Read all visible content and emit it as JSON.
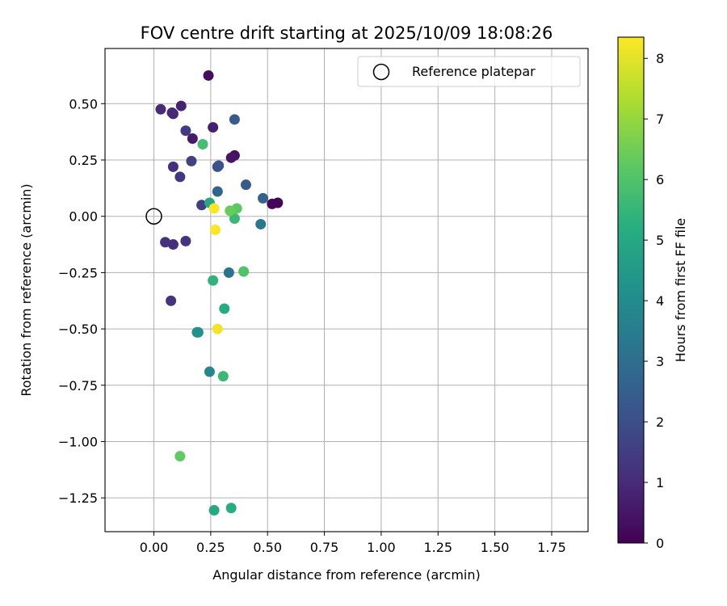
{
  "chart_data": {
    "type": "scatter",
    "title": "FOV centre drift starting at 2025/10/09 18:08:26",
    "xlabel": "Angular distance from reference (arcmin)",
    "ylabel": "Rotation from reference (arcmin)",
    "xlim": [
      -0.215,
      1.91
    ],
    "ylim": [
      -1.4,
      0.745
    ],
    "xticks": [
      0.0,
      0.25,
      0.5,
      0.75,
      1.0,
      1.25,
      1.5,
      1.75
    ],
    "xtick_labels": [
      "0.00",
      "0.25",
      "0.50",
      "0.75",
      "1.00",
      "1.25",
      "1.50",
      "1.75"
    ],
    "yticks": [
      0.5,
      0.25,
      0.0,
      -0.25,
      -0.5,
      -0.75,
      -1.0,
      -1.25
    ],
    "ytick_labels": [
      "0.50",
      "0.25",
      "0.00",
      "−0.25",
      "−0.50",
      "−0.75",
      "−1.00",
      "−1.25"
    ],
    "grid": true,
    "legend": {
      "placement": "top-right",
      "entries": [
        "Reference platepar"
      ]
    },
    "reference_point": {
      "label": "Reference platepar",
      "x": 0.0,
      "y": 0.0
    },
    "colorbar": {
      "label": "Hours from first FF file",
      "min": 0,
      "max": 8.35,
      "ticks": [
        0,
        1,
        2,
        3,
        4,
        5,
        6,
        7,
        8
      ],
      "tick_labels": [
        "0",
        "1",
        "2",
        "3",
        "4",
        "5",
        "6",
        "7",
        "8"
      ],
      "colormap": "viridis"
    },
    "points": [
      {
        "x": 0.545,
        "y": 0.06,
        "h": 0.05
      },
      {
        "x": 0.52,
        "y": 0.055,
        "h": 0.15
      },
      {
        "x": 0.24,
        "y": 0.625,
        "h": 0.3
      },
      {
        "x": 0.355,
        "y": 0.27,
        "h": 0.4
      },
      {
        "x": 0.34,
        "y": 0.26,
        "h": 0.5
      },
      {
        "x": 0.17,
        "y": 0.345,
        "h": 0.6
      },
      {
        "x": 0.26,
        "y": 0.395,
        "h": 0.7
      },
      {
        "x": 0.12,
        "y": 0.49,
        "h": 0.8
      },
      {
        "x": 0.085,
        "y": 0.455,
        "h": 0.9
      },
      {
        "x": 0.08,
        "y": 0.46,
        "h": 0.95
      },
      {
        "x": 0.03,
        "y": 0.475,
        "h": 1.0
      },
      {
        "x": 0.085,
        "y": 0.22,
        "h": 1.1
      },
      {
        "x": 0.085,
        "y": -0.125,
        "h": 1.05
      },
      {
        "x": 0.05,
        "y": -0.115,
        "h": 1.15
      },
      {
        "x": 0.075,
        "y": -0.375,
        "h": 1.2
      },
      {
        "x": 0.14,
        "y": -0.11,
        "h": 1.25
      },
      {
        "x": 0.115,
        "y": 0.175,
        "h": 1.35
      },
      {
        "x": 0.14,
        "y": 0.38,
        "h": 1.45
      },
      {
        "x": 0.21,
        "y": 0.05,
        "h": 1.55
      },
      {
        "x": 0.165,
        "y": 0.245,
        "h": 1.6
      },
      {
        "x": 0.28,
        "y": 0.22,
        "h": 2.05
      },
      {
        "x": 0.285,
        "y": 0.225,
        "h": 2.1
      },
      {
        "x": 0.355,
        "y": 0.43,
        "h": 2.3
      },
      {
        "x": 0.405,
        "y": 0.14,
        "h": 2.4
      },
      {
        "x": 0.48,
        "y": 0.08,
        "h": 2.6
      },
      {
        "x": 0.28,
        "y": 0.11,
        "h": 2.7
      },
      {
        "x": 0.47,
        "y": -0.035,
        "h": 3.3
      },
      {
        "x": 0.33,
        "y": -0.25,
        "h": 3.2
      },
      {
        "x": 0.19,
        "y": -0.515,
        "h": 3.9
      },
      {
        "x": 0.245,
        "y": -0.69,
        "h": 3.8
      },
      {
        "x": 0.195,
        "y": -0.515,
        "h": 4.2
      },
      {
        "x": 0.265,
        "y": -1.305,
        "h": 5.0
      },
      {
        "x": 0.34,
        "y": -1.295,
        "h": 5.2
      },
      {
        "x": 0.31,
        "y": -0.41,
        "h": 5.1
      },
      {
        "x": 0.245,
        "y": 0.06,
        "h": 5.0
      },
      {
        "x": 0.26,
        "y": -0.285,
        "h": 5.4
      },
      {
        "x": 0.355,
        "y": -0.01,
        "h": 5.6
      },
      {
        "x": 0.305,
        "y": -0.71,
        "h": 5.6
      },
      {
        "x": 0.395,
        "y": -0.245,
        "h": 6.0
      },
      {
        "x": 0.365,
        "y": 0.035,
        "h": 6.2
      },
      {
        "x": 0.335,
        "y": 0.025,
        "h": 6.4
      },
      {
        "x": 0.115,
        "y": -1.065,
        "h": 6.3
      },
      {
        "x": 0.215,
        "y": 0.32,
        "h": 5.8
      },
      {
        "x": 0.265,
        "y": 0.035,
        "h": 8.3
      },
      {
        "x": 0.27,
        "y": -0.06,
        "h": 8.3
      },
      {
        "x": 0.28,
        "y": -0.5,
        "h": 8.2
      }
    ]
  }
}
